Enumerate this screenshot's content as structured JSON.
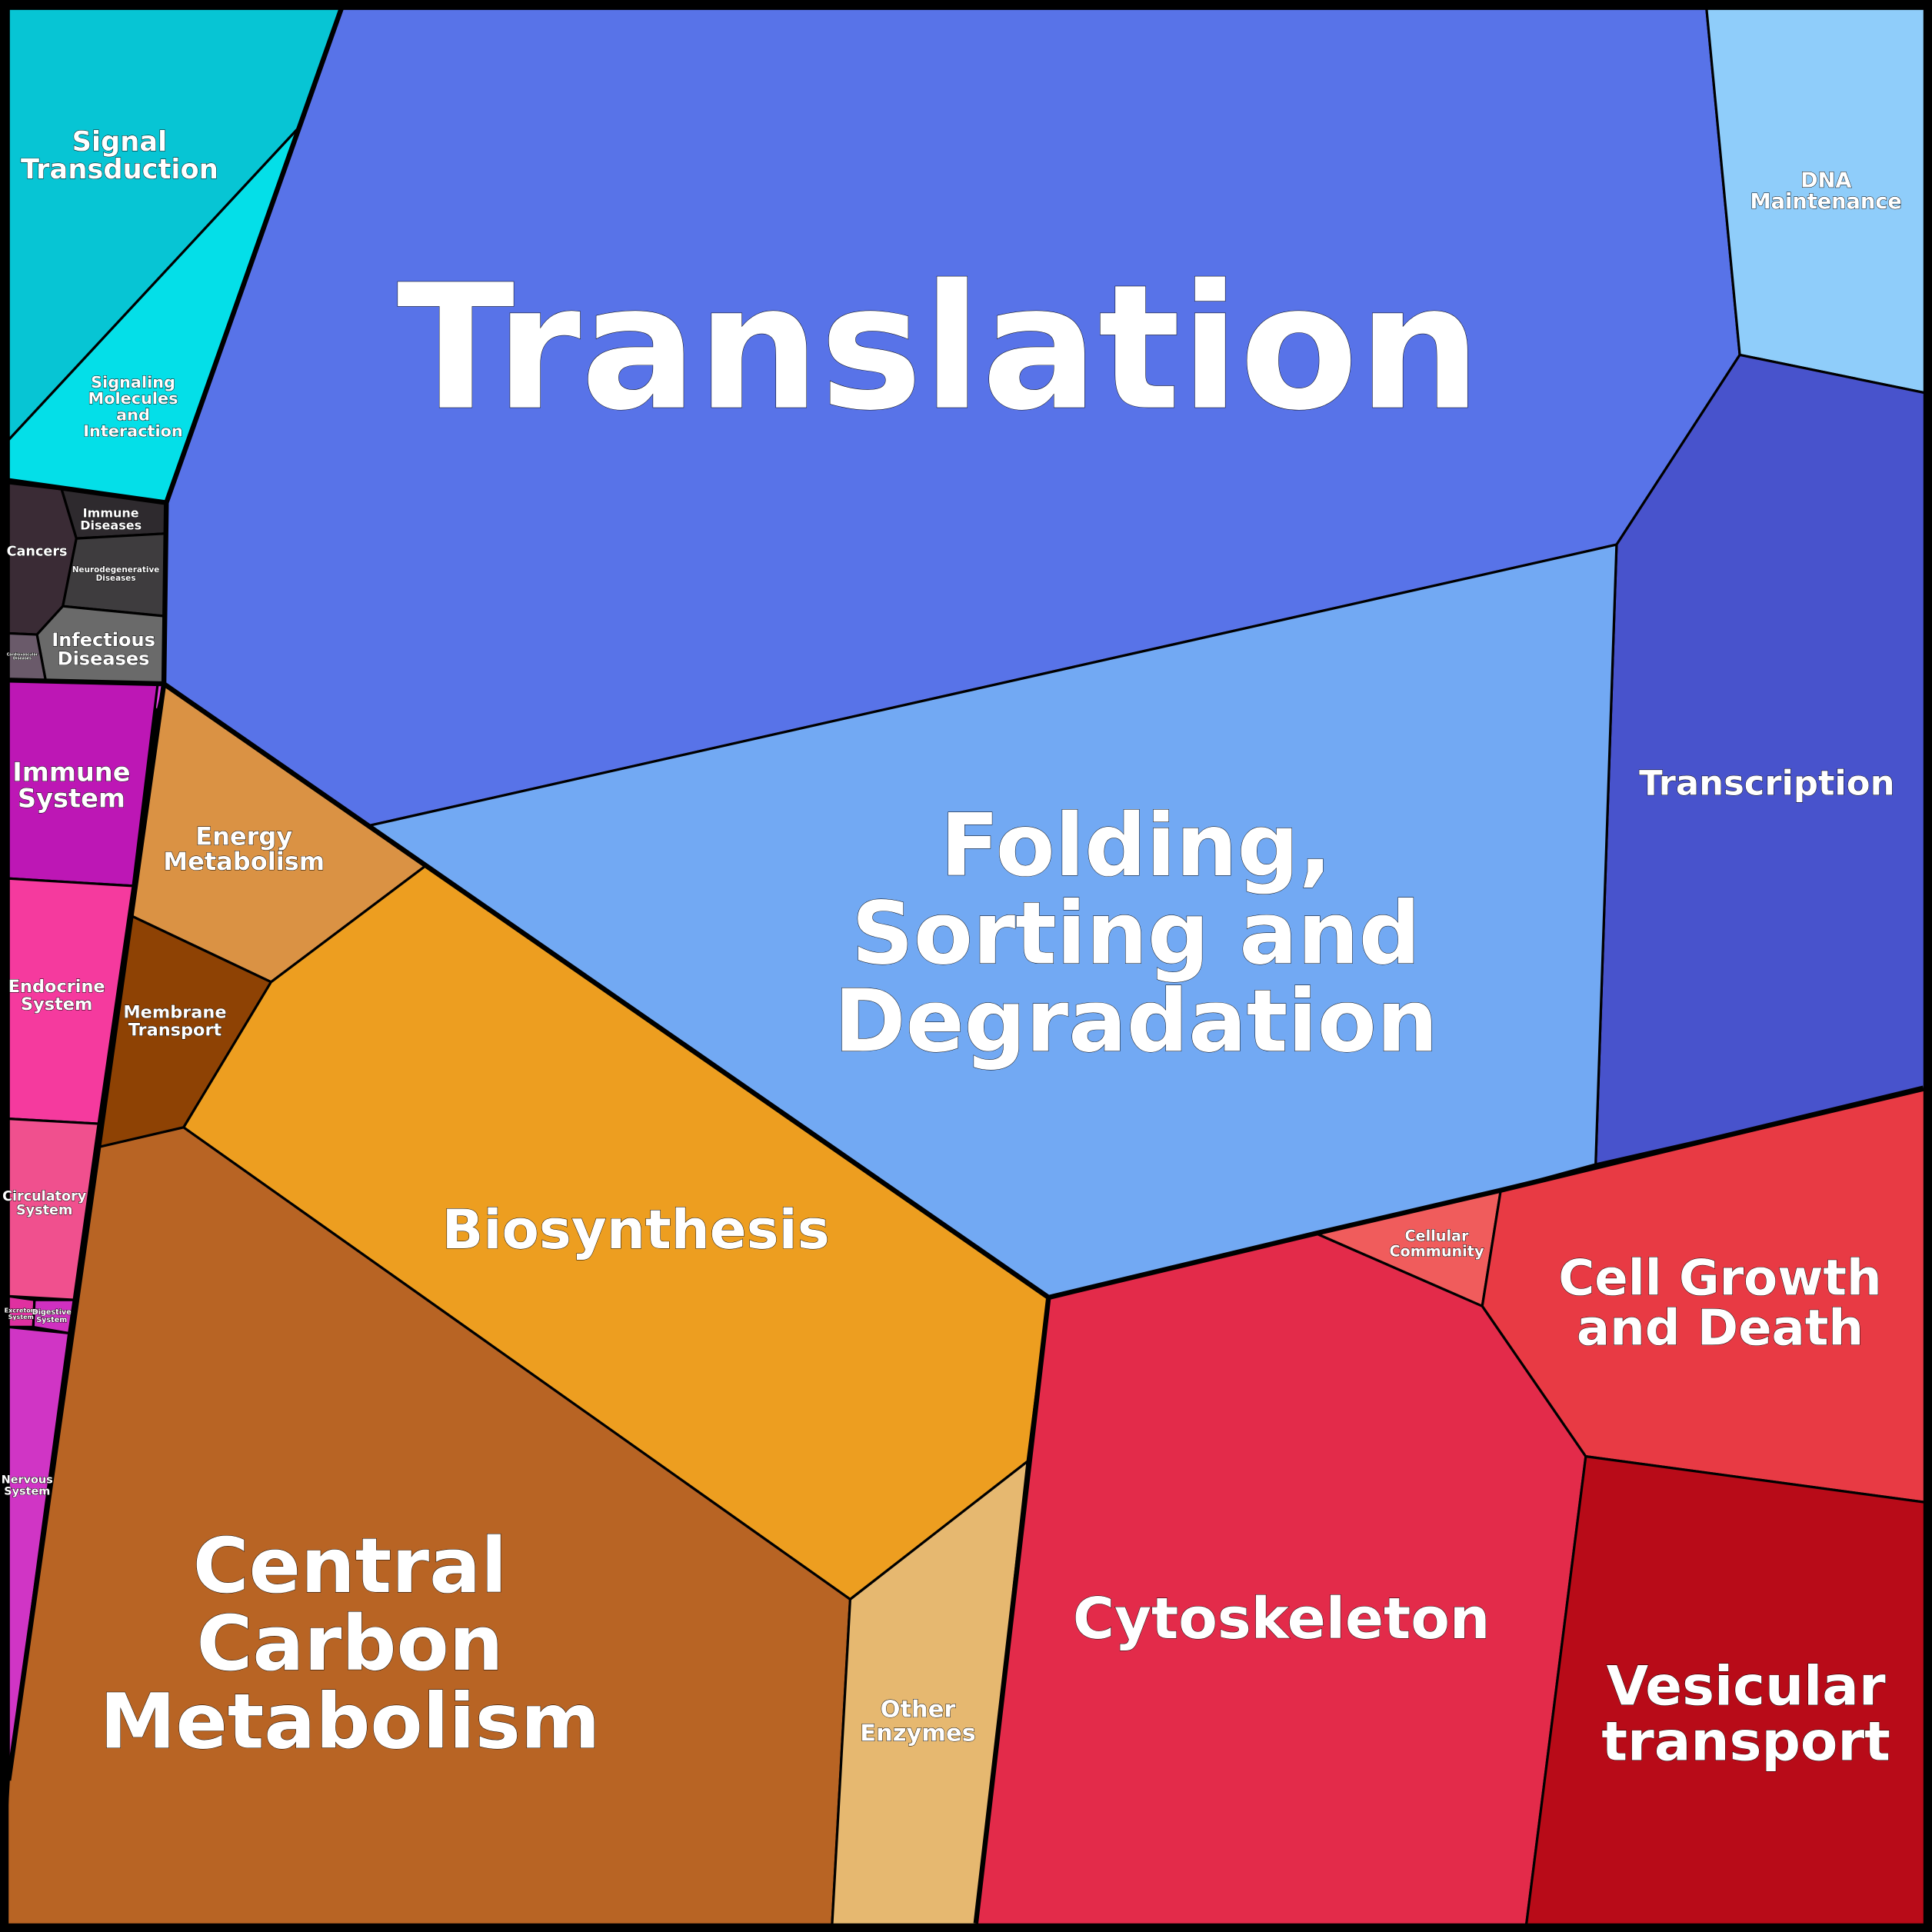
{
  "cells": [
    {
      "lines": [
        "Signal",
        "Transduction"
      ]
    },
    {
      "lines": [
        "Signaling",
        "Molecules",
        "and",
        "Interaction"
      ]
    },
    {
      "lines": [
        "Translation"
      ]
    },
    {
      "lines": [
        "DNA",
        "Maintenance"
      ]
    },
    {
      "lines": [
        "Transcription"
      ]
    },
    {
      "lines": [
        "Folding,",
        "Sorting and",
        "Degradation"
      ]
    },
    {
      "lines": [
        "Cancers"
      ]
    },
    {
      "lines": [
        "Immune",
        "Diseases"
      ]
    },
    {
      "lines": [
        "Neurodegenerative",
        "Diseases"
      ]
    },
    {
      "lines": [
        "Infectious",
        "Diseases"
      ]
    },
    {
      "lines": [
        "Cardiovascular",
        "Diseases"
      ]
    },
    {
      "lines": [
        "Immune",
        "System"
      ]
    },
    {
      "lines": [
        "Endocrine",
        "System"
      ]
    },
    {
      "lines": [
        "Circulatory",
        "System"
      ]
    },
    {
      "lines": [
        "Excretory",
        "System"
      ]
    },
    {
      "lines": [
        "Digestive",
        "System"
      ]
    },
    {
      "lines": [
        "Nervous",
        "System"
      ]
    },
    {
      "lines": [
        "Energy",
        "Metabolism"
      ]
    },
    {
      "lines": [
        "Membrane",
        "Transport"
      ]
    },
    {
      "lines": [
        "Biosynthesis"
      ]
    },
    {
      "lines": [
        "Central",
        "Carbon",
        "Metabolism"
      ]
    },
    {
      "lines": [
        "Other",
        "Enzymes"
      ]
    },
    {
      "lines": [
        "Cytoskeleton"
      ]
    },
    {
      "lines": [
        "Cellular",
        "Community"
      ]
    },
    {
      "lines": [
        "Cell Growth",
        "and Death"
      ]
    },
    {
      "lines": [
        "Vesicular",
        "transport"
      ]
    }
  ]
}
